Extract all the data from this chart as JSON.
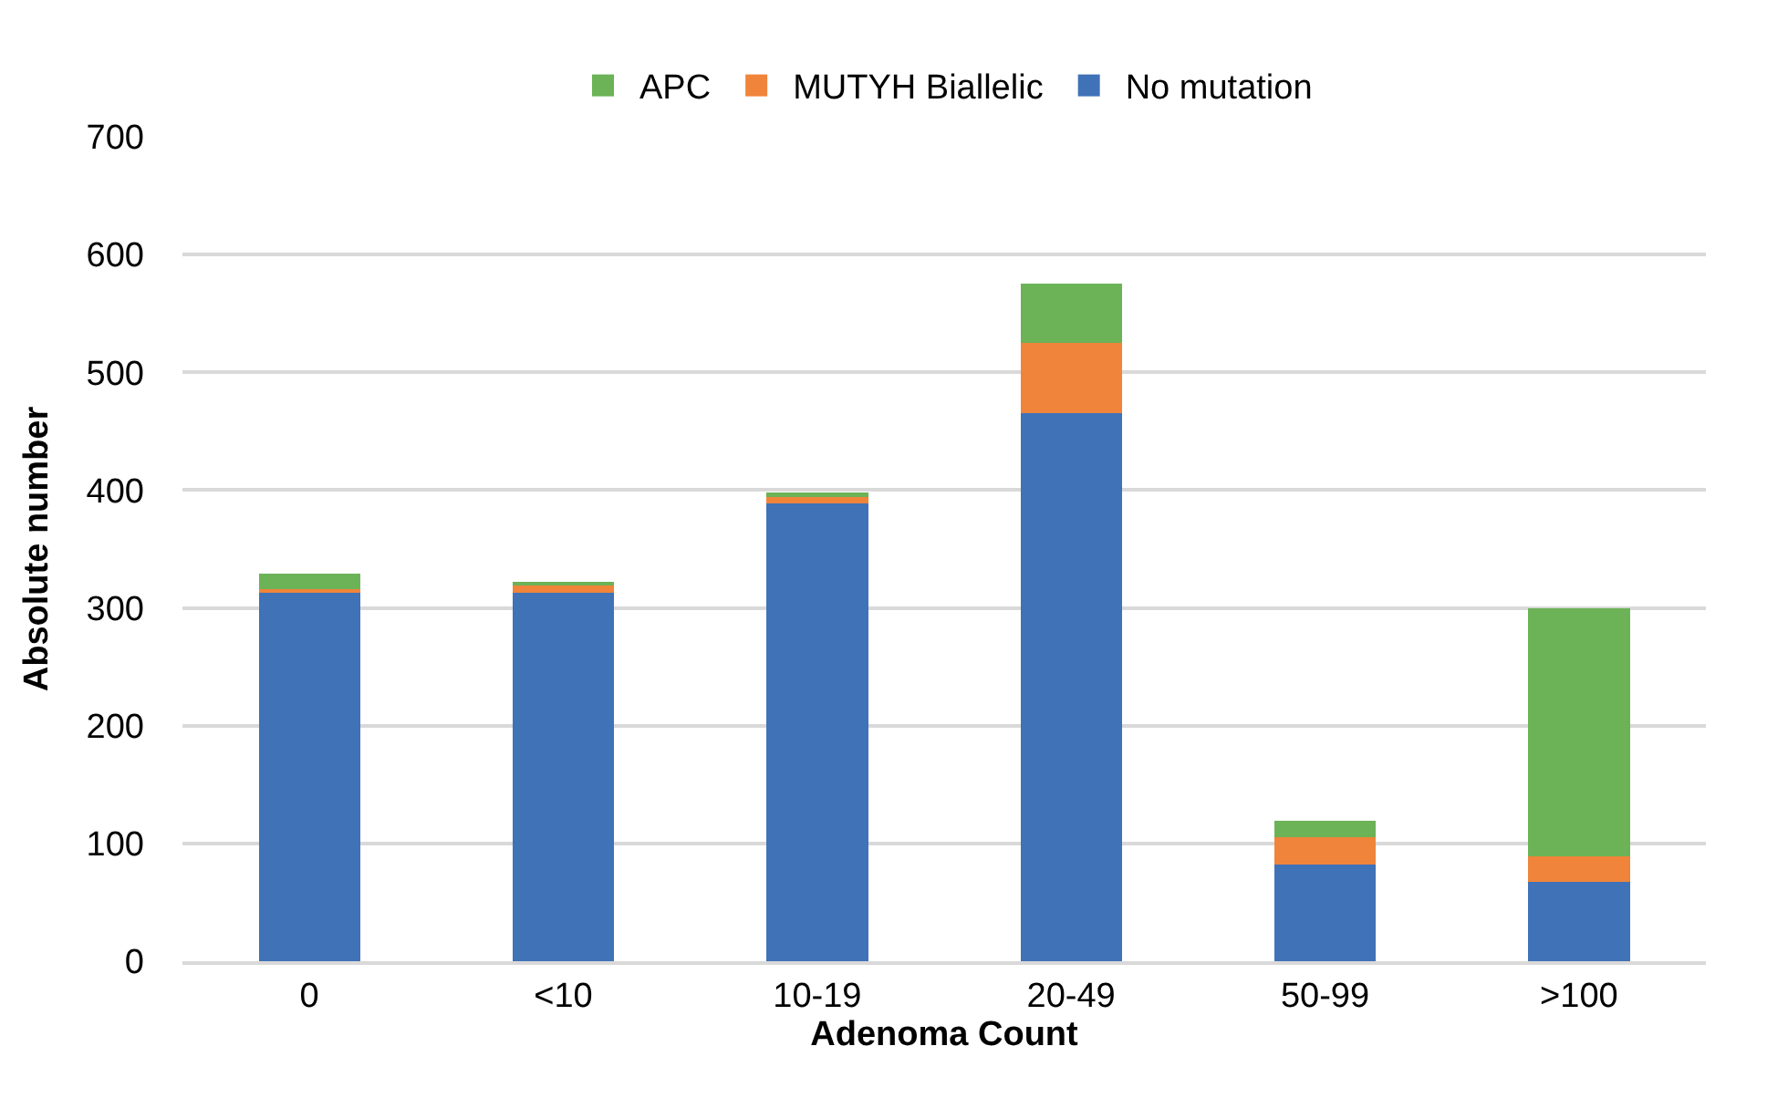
{
  "chart_data": {
    "type": "bar",
    "stacked": true,
    "xlabel": "Adenoma Count",
    "ylabel": "Absolute number",
    "categories": [
      "0",
      "<10",
      "10-19",
      "20-49",
      "50-99",
      ">100"
    ],
    "series": [
      {
        "name": "No mutation",
        "color": "#4072b8",
        "values": [
          313,
          313,
          389,
          465,
          82,
          67
        ]
      },
      {
        "name": "MUTYH Biallelic",
        "color": "#f0843a",
        "values": [
          3,
          7,
          5,
          60,
          23,
          22
        ]
      },
      {
        "name": "APC",
        "color": "#6cb257",
        "values": [
          13,
          2,
          4,
          50,
          14,
          211
        ]
      }
    ],
    "ylim": [
      0,
      700
    ],
    "yticks": [
      0,
      100,
      200,
      300,
      400,
      500,
      600,
      700
    ],
    "grid": "y",
    "legend": "top"
  }
}
